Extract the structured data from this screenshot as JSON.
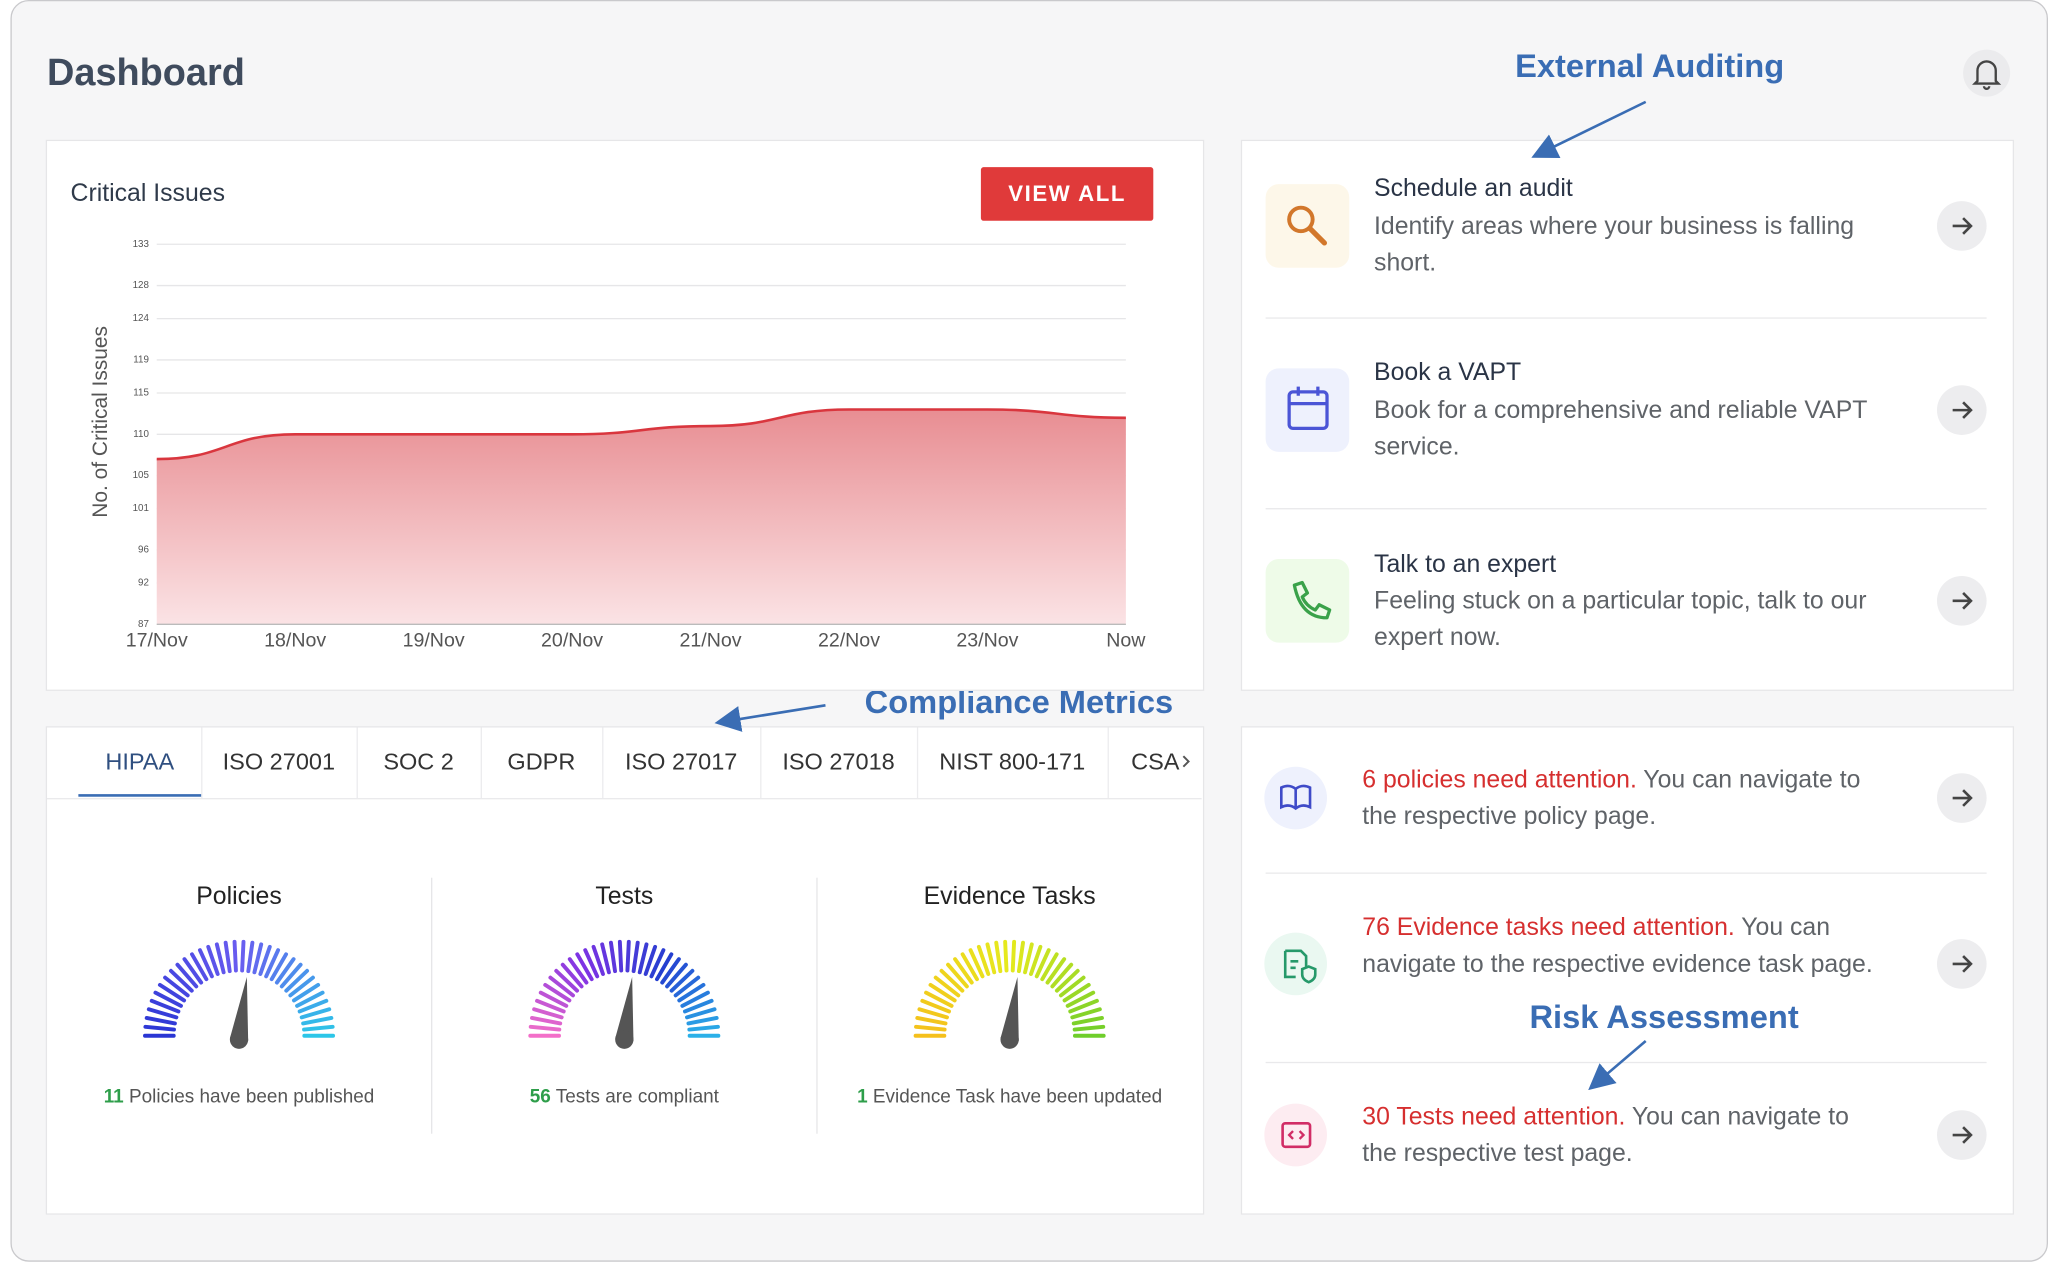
{
  "header": {
    "title": "Dashboard"
  },
  "annotations": [
    "External Auditing",
    "Compliance Metrics",
    "Risk Assessment"
  ],
  "chart_data": {
    "type": "area",
    "title": "Critical Issues",
    "button": "VIEW ALL",
    "y_label": "No. of Critical Issues",
    "categories": [
      "17/Nov",
      "18/Nov",
      "19/Nov",
      "20/Nov",
      "21/Nov",
      "22/Nov",
      "23/Nov",
      "Now"
    ],
    "values": [
      107,
      110,
      110,
      110,
      111,
      113,
      113,
      112
    ],
    "color": "#d9363e",
    "ylim": [
      87,
      133
    ],
    "yticks": [
      87,
      92,
      96,
      101,
      105,
      110,
      115,
      119,
      124,
      128,
      133
    ],
    "grid": true
  },
  "services": [
    {
      "title": "Schedule an audit",
      "description": "Identify areas where your business is falling short."
    },
    {
      "title": "Book a VAPT",
      "description": "Book for a comprehensive and reliable VAPT service."
    },
    {
      "title": "Talk to an expert",
      "description": "Feeling stuck on a particular topic, talk to our expert now."
    }
  ],
  "tabs": [
    "HIPAA",
    "ISO 27001",
    "SOC 2",
    "GDPR",
    "ISO 27017",
    "ISO 27018",
    "NIST 800-171",
    "CSA"
  ],
  "gauges": [
    {
      "title": "Policies",
      "count": 11,
      "caption": "Policies have been published",
      "colors": [
        "#2a36d4",
        "#6a5cf0",
        "#2cc6e8"
      ]
    },
    {
      "title": "Tests",
      "count": 56,
      "caption": "Tests are compliant",
      "colors": [
        "#f36fc9",
        "#7d33e4",
        "#243fd0",
        "#2bb0e8"
      ]
    },
    {
      "title": "Evidence Tasks",
      "count": 1,
      "caption": "Evidence Task have been updated",
      "colors": [
        "#f5c01c",
        "#e6ea1e",
        "#6fce2b"
      ]
    }
  ],
  "attention": [
    {
      "highlight": "6 policies need attention.",
      "text": "You can navigate to the respective policy page."
    },
    {
      "highlight": "76 Evidence tasks need attention.",
      "text": "You can navigate to the respective evidence task page."
    },
    {
      "highlight": "30 Tests need attention.",
      "text": "You can navigate to the respective test page."
    }
  ]
}
